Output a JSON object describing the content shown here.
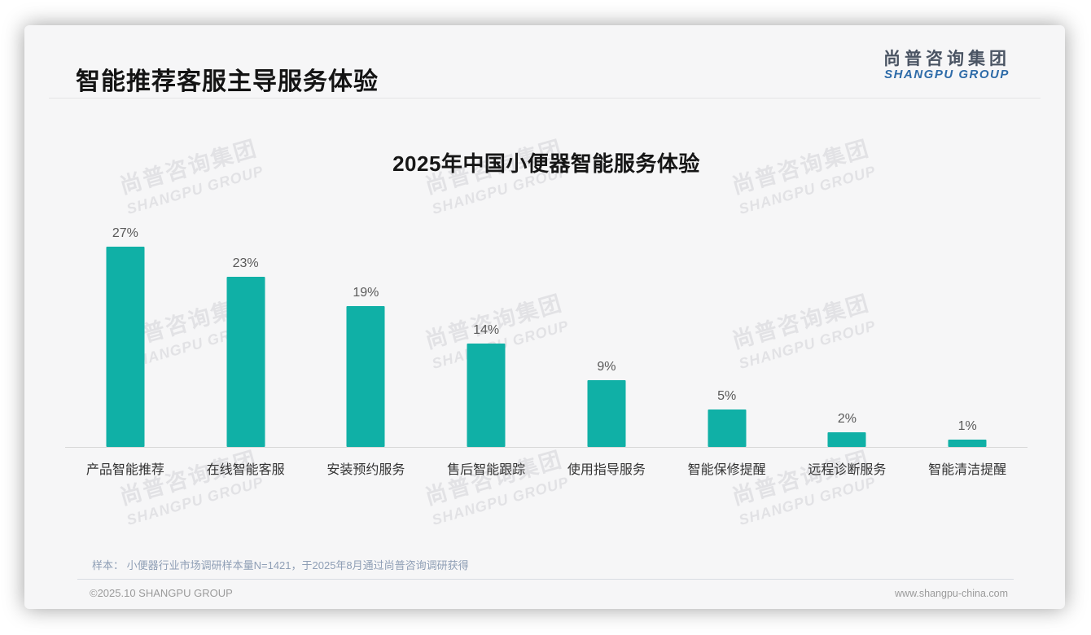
{
  "page": {
    "title": "智能推荐客服主导服务体验",
    "logo": {
      "zh": "尚普咨询集团",
      "en": "SHANGPU GROUP"
    },
    "watermark": {
      "zh": "尚普咨询集团",
      "en": "SHANGPU GROUP"
    },
    "footer": {
      "sample_note": "样本： 小便器行业市场调研样本量N=1421，于2025年8月通过尚普咨询调研获得",
      "copyright": "©2025.10 SHANGPU GROUP",
      "website": "www.shangpu-china.com"
    }
  },
  "colors": {
    "bar_teal": "#10b0a6",
    "logo_blue": "#2e6ba8",
    "card_background": "#f6f6f7",
    "axis_gray": "#d8d8d8"
  },
  "chart_data": {
    "type": "bar",
    "title": "2025年中国小便器智能服务体验",
    "categories": [
      "产品智能推荐",
      "在线智能客服",
      "安装预约服务",
      "售后智能跟踪",
      "使用指导服务",
      "智能保修提醒",
      "远程诊断服务",
      "智能清洁提醒"
    ],
    "values": [
      27,
      23,
      19,
      14,
      9,
      5,
      2,
      1
    ],
    "unit": "%",
    "value_labels": [
      "27%",
      "23%",
      "19%",
      "14%",
      "9%",
      "5%",
      "2%",
      "1%"
    ],
    "xlabel": "",
    "ylabel": "",
    "ylim": [
      0,
      30
    ],
    "grid": false,
    "legend": "none",
    "bar_color": "#10b0a6"
  }
}
